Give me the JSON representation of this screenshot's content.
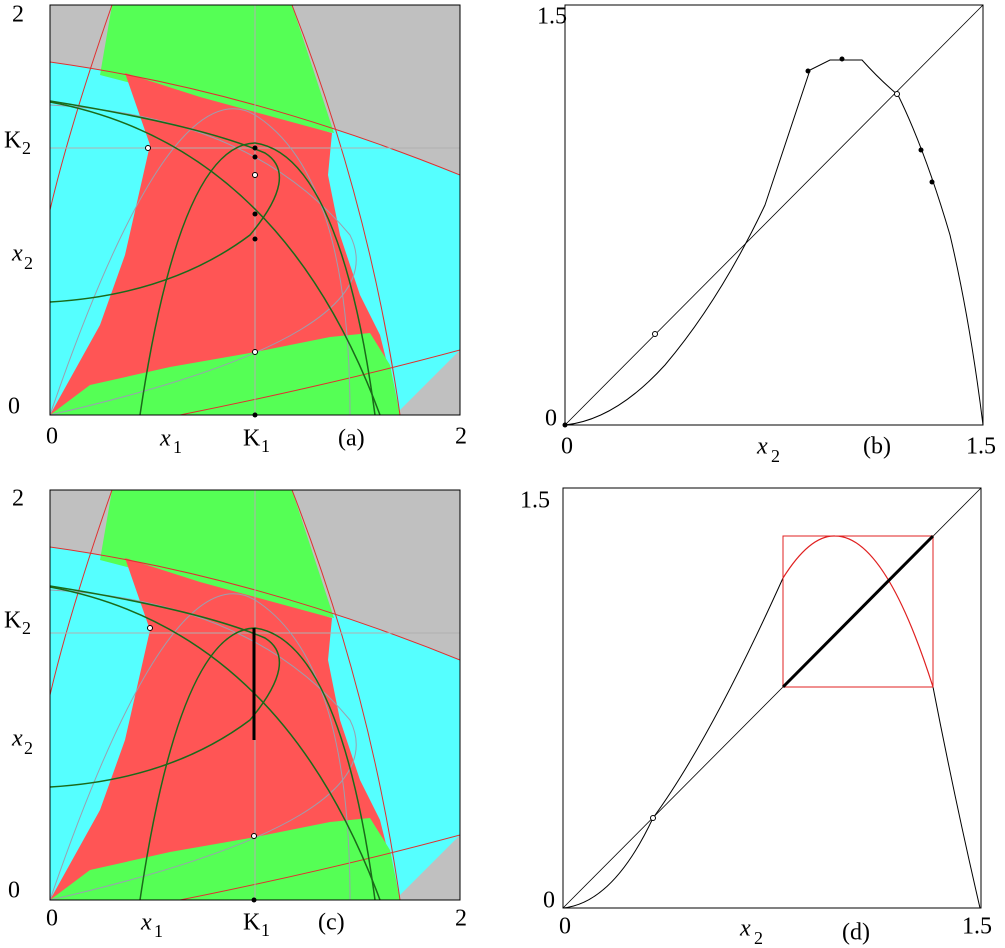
{
  "panels": [
    {
      "letter": "(a)",
      "y_max": "2",
      "y_min": "0",
      "y_ref": {
        "main": "K",
        "sub": "2"
      },
      "y_var": {
        "main": "x",
        "sub": "2"
      },
      "x_min": "0",
      "x_var": {
        "main": "x",
        "sub": "1"
      },
      "x_ref": {
        "main": "K",
        "sub": "1"
      },
      "x_max": "2"
    },
    {
      "letter": "(b)",
      "y_max": "1.5",
      "y_min": "0",
      "x_min": "0",
      "x_var": {
        "main": "x",
        "sub": "2"
      },
      "x_max": "1.5"
    },
    {
      "letter": "(c)",
      "y_max": "2",
      "y_min": "0",
      "y_ref": {
        "main": "K",
        "sub": "2"
      },
      "y_var": {
        "main": "x",
        "sub": "2"
      },
      "x_min": "0",
      "x_var": {
        "main": "x",
        "sub": "1"
      },
      "x_ref": {
        "main": "K",
        "sub": "1"
      },
      "x_max": "2"
    },
    {
      "letter": "(d)",
      "y_max": "1.5",
      "y_min": "0",
      "x_min": "0",
      "x_var": {
        "main": "x",
        "sub": "2"
      },
      "x_max": "1.5"
    }
  ]
}
